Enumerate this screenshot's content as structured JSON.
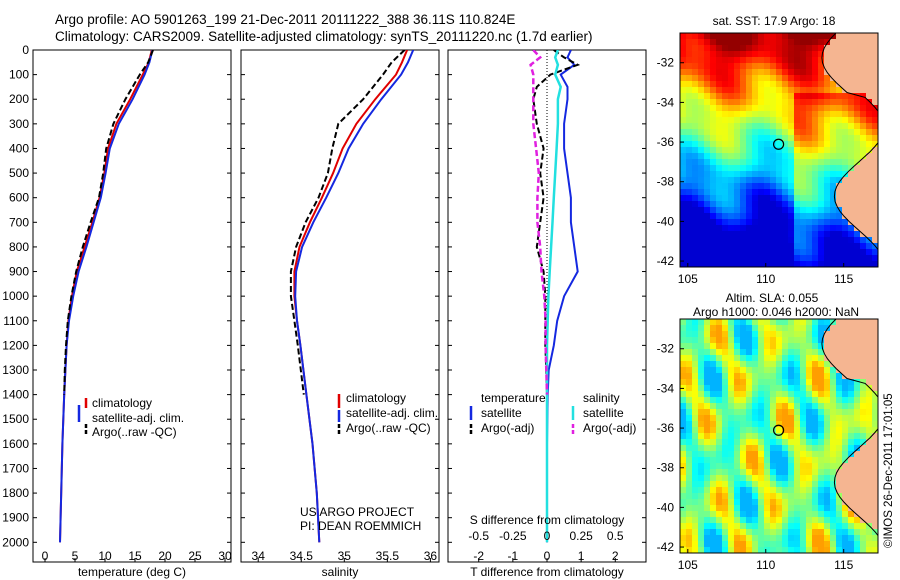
{
  "header": {
    "line1": "Argo profile: AO 5901263_199 21-Dec-2011 20111222_388 36.11S 110.824E",
    "line2": "Climatology: CARS2009. Satellite-adjusted climatology: synTS_20111220.nc (1.7d earlier)"
  },
  "colors": {
    "climatology": "#e00000",
    "satellite": "#1428e0",
    "argo": "#000000",
    "satellite_salinity": "#22e0e0",
    "argo_salinity_adj": "#e020e0"
  },
  "panels": {
    "temperature": {
      "xlabel": "temperature (deg C)",
      "legend": [
        "climatology",
        "satellite-adj. clim.",
        "Argo(..raw -QC)"
      ]
    },
    "salinity": {
      "xlabel": "salinity",
      "legend": [
        "climatology",
        "satellite-adj. clim.",
        "Argo(..raw -QC)"
      ],
      "credit1": "US ARGO PROJECT",
      "credit2": "PI: DEAN ROEMMICH"
    },
    "difference": {
      "xlabel": "T difference from climatology",
      "top_label": "S difference from climatology",
      "legend_temp_title": "temperature",
      "legend_sal_title": "salinity",
      "legend_temp": [
        "satellite",
        "Argo(-adj)"
      ],
      "legend_sal": [
        "satellite",
        "Argo(-adj)"
      ]
    }
  },
  "maps": {
    "sst": {
      "title": "sat. SST: 17.9 Argo: 18"
    },
    "sla": {
      "title1": "Altim. SLA: 0.055",
      "title2": "Argo h1000: 0.046 h2000: NaN"
    },
    "yticks": [
      "-32",
      "-34",
      "-36",
      "-38",
      "-40",
      "-42"
    ],
    "xticks": [
      "105",
      "110",
      "115"
    ]
  },
  "stamp": "©IMOS 26-Dec-2011 17:01:05",
  "chart_data": [
    {
      "type": "line",
      "name": "temperature profile",
      "xlabel": "temperature (deg C)",
      "ylabel": "",
      "xlim": [
        -2,
        31
      ],
      "ylim": [
        2080,
        0
      ],
      "xticks": [
        0,
        5,
        10,
        15,
        20,
        25,
        30
      ],
      "yticks": [
        0,
        100,
        200,
        300,
        400,
        500,
        600,
        700,
        800,
        900,
        1000,
        1100,
        1200,
        1300,
        1400,
        1500,
        1600,
        1700,
        1800,
        1900,
        2000
      ],
      "depth": [
        0,
        50,
        100,
        200,
        300,
        400,
        500,
        600,
        700,
        800,
        900,
        1000,
        1100,
        1200,
        1300,
        1400,
        1600,
        1800,
        2000
      ],
      "series": [
        {
          "name": "climatology",
          "values": [
            17.8,
            17.3,
            16.3,
            14.2,
            11.9,
            10.5,
            9.9,
            9.1,
            7.9,
            6.6,
            5.3,
            4.5,
            3.9,
            3.6,
            3.4,
            3.2,
            2.9,
            2.7,
            2.5
          ]
        },
        {
          "name": "satellite-adj. clim.",
          "values": [
            17.9,
            17.4,
            16.6,
            14.6,
            12.3,
            10.8,
            10.1,
            9.3,
            8.1,
            6.9,
            5.6,
            4.7,
            4.0,
            3.6,
            3.4,
            3.2,
            2.9,
            2.7,
            2.5
          ]
        },
        {
          "name": "Argo(..raw -QC)",
          "values": [
            18.0,
            17.2,
            15.8,
            13.4,
            11.4,
            10.2,
            9.7,
            9.0,
            7.6,
            6.3,
            5.2,
            4.4,
            3.8,
            3.5,
            3.3,
            3.2,
            null,
            null,
            null
          ]
        }
      ]
    },
    {
      "type": "line",
      "name": "salinity profile",
      "xlabel": "salinity",
      "ylabel": "",
      "xlim": [
        33.8,
        36.1
      ],
      "ylim": [
        2080,
        0
      ],
      "xticks": [
        34,
        34.5,
        35,
        35.5,
        36
      ],
      "depth": [
        0,
        50,
        100,
        200,
        300,
        400,
        500,
        600,
        700,
        800,
        900,
        1000,
        1100,
        1200,
        1400,
        1600,
        1800,
        2000
      ],
      "series": [
        {
          "name": "climatology",
          "values": [
            35.73,
            35.67,
            35.6,
            35.36,
            35.14,
            34.98,
            34.87,
            34.74,
            34.6,
            34.48,
            34.42,
            34.42,
            34.45,
            34.49,
            34.56,
            34.63,
            34.68,
            34.71
          ]
        },
        {
          "name": "satellite-adj. clim.",
          "values": [
            35.8,
            35.74,
            35.66,
            35.43,
            35.22,
            35.05,
            34.93,
            34.79,
            34.64,
            34.51,
            34.44,
            34.43,
            34.45,
            34.49,
            34.56,
            34.63,
            34.68,
            34.71
          ]
        },
        {
          "name": "Argo(..raw -QC)",
          "values": [
            35.7,
            35.55,
            35.45,
            35.22,
            34.93,
            34.86,
            34.81,
            34.7,
            34.55,
            34.44,
            34.38,
            34.38,
            34.42,
            34.46,
            34.53,
            null,
            null,
            null
          ]
        }
      ]
    },
    {
      "type": "line",
      "name": "difference from climatology",
      "xlabel": "T difference from climatology",
      "xlabel_top": "S difference from climatology",
      "xlim": [
        -2.9,
        2.9
      ],
      "ylim": [
        2080,
        0
      ],
      "xticks": [
        -2,
        -1,
        0,
        1,
        2
      ],
      "xticks_top": [
        -0.5,
        -0.25,
        0,
        0.25,
        0.5
      ],
      "depth": [
        0,
        30,
        60,
        100,
        150,
        200,
        300,
        400,
        500,
        600,
        700,
        800,
        900,
        1000,
        1100,
        1200,
        1300,
        1400,
        1600,
        1800,
        2000
      ],
      "series": [
        {
          "name": "temperature satellite",
          "values": [
            0.7,
            0.6,
            0.8,
            0.4,
            0.6,
            0.6,
            0.5,
            0.5,
            0.6,
            0.7,
            0.7,
            0.8,
            0.9,
            0.5,
            0.3,
            0.2,
            0.05,
            0.02,
            0,
            0,
            0
          ]
        },
        {
          "name": "temperature Argo(-adj)",
          "values": [
            0.2,
            0.5,
            0.9,
            0.1,
            -0.3,
            -0.4,
            -0.3,
            -0.1,
            -0.2,
            -0.1,
            -0.2,
            -0.3,
            -0.1,
            -0.05,
            -0.05,
            -0.05,
            -0.02,
            0,
            null,
            null,
            null
          ]
        },
        {
          "name": "salinity satellite",
          "values": [
            0.08,
            0.06,
            0.08,
            0.06,
            0.1,
            0.08,
            0.08,
            0.07,
            0.06,
            0.05,
            0.04,
            0.03,
            0.02,
            0.01,
            0.005,
            0,
            0,
            0,
            0,
            0,
            0
          ]
        },
        {
          "name": "salinity Argo(-adj)",
          "values": [
            -0.1,
            -0.05,
            -0.12,
            -0.1,
            -0.1,
            -0.1,
            -0.1,
            -0.08,
            -0.06,
            -0.07,
            -0.07,
            -0.05,
            -0.04,
            -0.02,
            -0.01,
            -0.01,
            -0.005,
            0,
            null,
            null,
            null
          ]
        }
      ]
    }
  ]
}
